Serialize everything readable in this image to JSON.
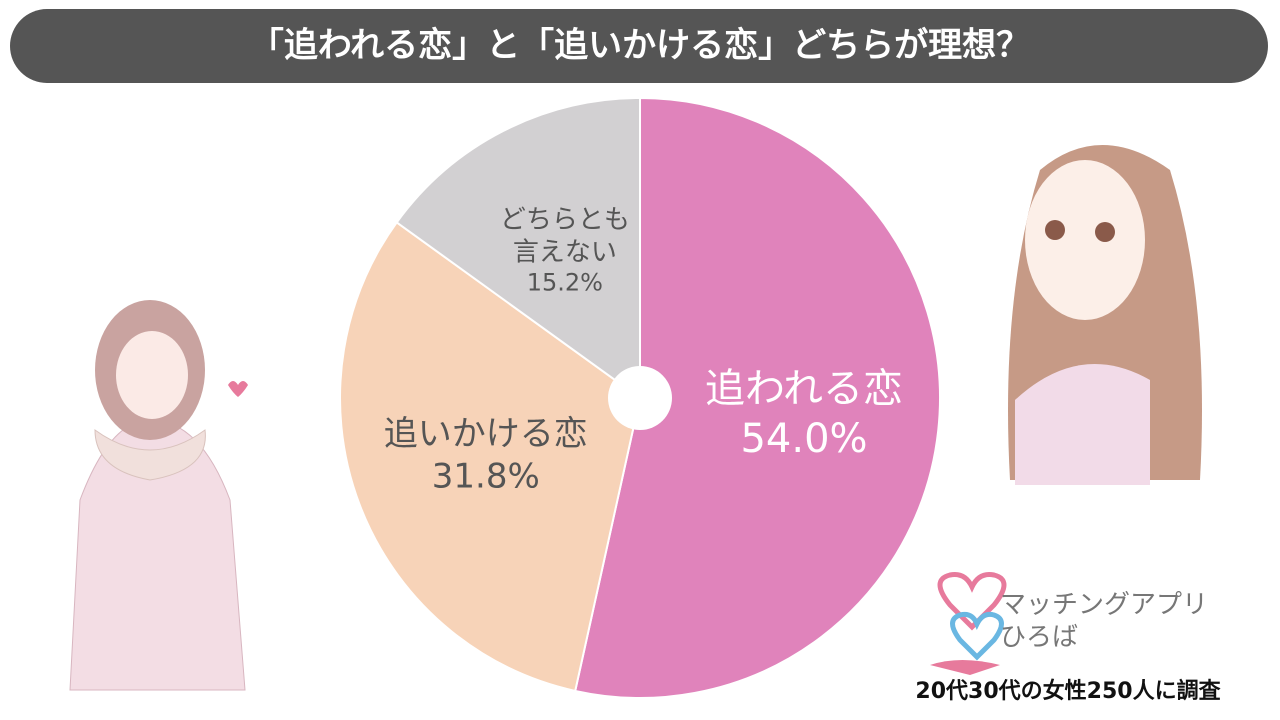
{
  "chart_data": {
    "type": "pie",
    "title": "「追われる恋」と「追いかける恋」どちらが理想？",
    "categories": [
      "追われる恋",
      "追いかける恋",
      "どちらとも\n言えない"
    ],
    "values": [
      54.0,
      31.8,
      15.2
    ],
    "value_labels": [
      "54.0%",
      "31.8%",
      "15.2%"
    ],
    "colors": [
      "#e083bb",
      "#f7d3b8",
      "#d2d0d2"
    ],
    "brand": "マッチングアプリ\nひろば",
    "note": "20代30代の女性250人に調査"
  }
}
